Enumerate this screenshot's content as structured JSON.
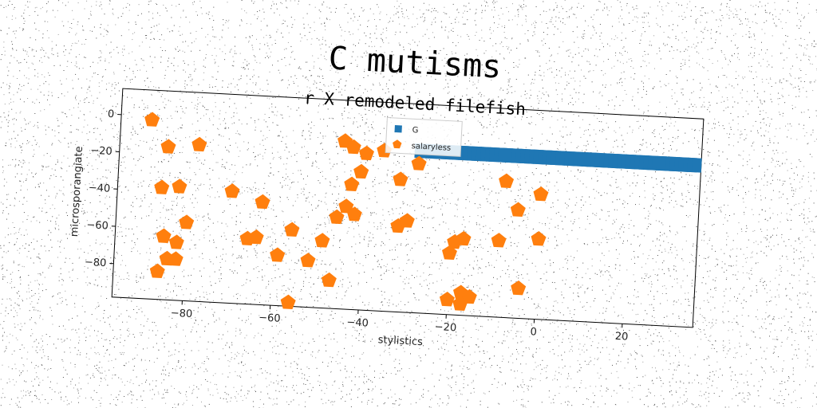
{
  "chart_data": {
    "type": "scatter",
    "title": "C mutisms",
    "subtitle": "r X remodeled filefish",
    "xlabel": "stylistics",
    "ylabel": "microsporangiate",
    "xlim": [
      -96,
      36
    ],
    "ylim": [
      -98,
      14
    ],
    "xticks": [
      -80,
      -60,
      -40,
      -20,
      0,
      20
    ],
    "yticks": [
      0,
      -20,
      -40,
      -60,
      -80
    ],
    "grid": false,
    "legend_position": "top-center",
    "colors": {
      "G": "#1f77b4",
      "salaryless": "#ff7f0e"
    },
    "series": [
      {
        "name": "G",
        "marker": "square",
        "x": [
          -28,
          -27,
          -26,
          -25,
          -24,
          -23,
          -22,
          -21,
          -20,
          -19,
          -18,
          -17,
          -16,
          -15,
          -14,
          -13,
          -12,
          -11,
          -10,
          -9,
          -8,
          -7,
          -6,
          -5,
          -4,
          -3,
          -2,
          -1,
          0,
          1,
          2,
          3,
          4,
          5,
          6,
          7,
          8,
          9,
          10,
          11,
          12,
          13,
          14,
          15,
          16,
          17,
          18,
          19,
          20,
          21,
          22,
          23,
          24,
          25,
          26,
          27,
          28,
          29,
          30,
          31,
          32,
          33,
          34,
          35
        ],
        "y": [
          -11,
          -11,
          -11,
          -11,
          -11,
          -11,
          -11,
          -11,
          -11,
          -11,
          -11,
          -11,
          -11,
          -11,
          -11,
          -11,
          -11,
          -11,
          -11,
          -11,
          -11,
          -11,
          -11,
          -11,
          -11,
          -11,
          -11,
          -11,
          -11,
          -11,
          -11,
          -11,
          -11,
          -11,
          -11,
          -11,
          -11,
          -11,
          -11,
          -11,
          -11,
          -11,
          -11,
          -11,
          -11,
          -11,
          -11,
          -11,
          -11,
          -11,
          -11,
          -11,
          -11,
          -11,
          -11,
          -11,
          -11,
          -11,
          -11,
          -11,
          -11,
          -11,
          -11,
          -11
        ]
      },
      {
        "name": "salaryless",
        "marker": "pentagon",
        "x": [
          -89,
          -85,
          -78,
          -86,
          -82,
          -85,
          -84,
          -82,
          -80,
          -82,
          -86,
          -70,
          -63,
          -66,
          -64,
          -59,
          -56,
          -56,
          -52,
          -49,
          -47,
          -46,
          -43,
          -45,
          -44,
          -43,
          -42,
          -41,
          -40,
          -36,
          -32,
          -32,
          -30,
          -28,
          -19,
          -17,
          -20,
          -20,
          -17,
          -17,
          -15,
          -9,
          -8,
          -5,
          -4,
          0,
          0
        ],
        "y": [
          -2,
          -16,
          -14,
          -38,
          -37,
          -64,
          -76,
          -67,
          -56,
          -76,
          -83,
          -38,
          -43,
          -63,
          -62,
          -71,
          -96,
          -57,
          -73,
          -62,
          -83,
          -49,
          -31,
          -8,
          -43,
          -11,
          -47,
          -24,
          -14,
          -12,
          -27,
          -52,
          -49,
          -18,
          -59,
          -57,
          -65,
          -90,
          -86,
          -92,
          -88,
          -57,
          -25,
          -40,
          -82,
          -31,
          -55
        ]
      }
    ]
  }
}
